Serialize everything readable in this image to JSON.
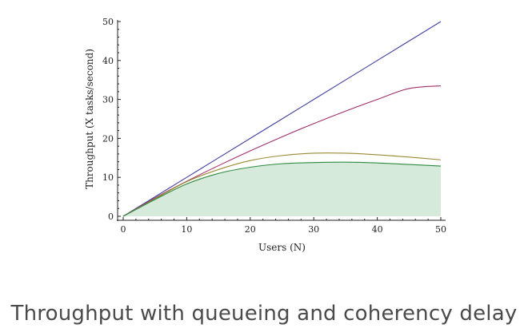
{
  "chart_data": {
    "type": "line",
    "xlabel": "Users (N)",
    "ylabel": "Throughput (X tasks/second)",
    "xlim": [
      0,
      50
    ],
    "ylim": [
      0,
      50
    ],
    "x_ticks": [
      0,
      10,
      20,
      30,
      40,
      50
    ],
    "y_ticks": [
      0,
      10,
      20,
      30,
      40,
      50
    ],
    "grid": false,
    "x": [
      0,
      5,
      10,
      15,
      20,
      25,
      30,
      35,
      40,
      45,
      50
    ],
    "series": [
      {
        "color": "#4040a0",
        "values": [
          0,
          5,
          10,
          15,
          20,
          25,
          30,
          35,
          40,
          45,
          50
        ]
      },
      {
        "color": "#a0306a",
        "values": [
          0,
          4.7,
          9.0,
          13.0,
          16.8,
          20.4,
          23.8,
          27.0,
          30.0,
          32.8,
          33.5
        ]
      },
      {
        "color": "#9a8a30",
        "values": [
          0,
          4.5,
          8.9,
          12.0,
          14.3,
          15.6,
          16.2,
          16.2,
          15.8,
          15.2,
          14.5
        ]
      },
      {
        "color": "#2e8b3e",
        "fill": "#d6eadb",
        "values": [
          0,
          4.3,
          8.3,
          11.0,
          12.6,
          13.5,
          13.8,
          13.9,
          13.7,
          13.3,
          12.9
        ]
      }
    ]
  },
  "caption": "Throughput with queueing and coherency delay"
}
